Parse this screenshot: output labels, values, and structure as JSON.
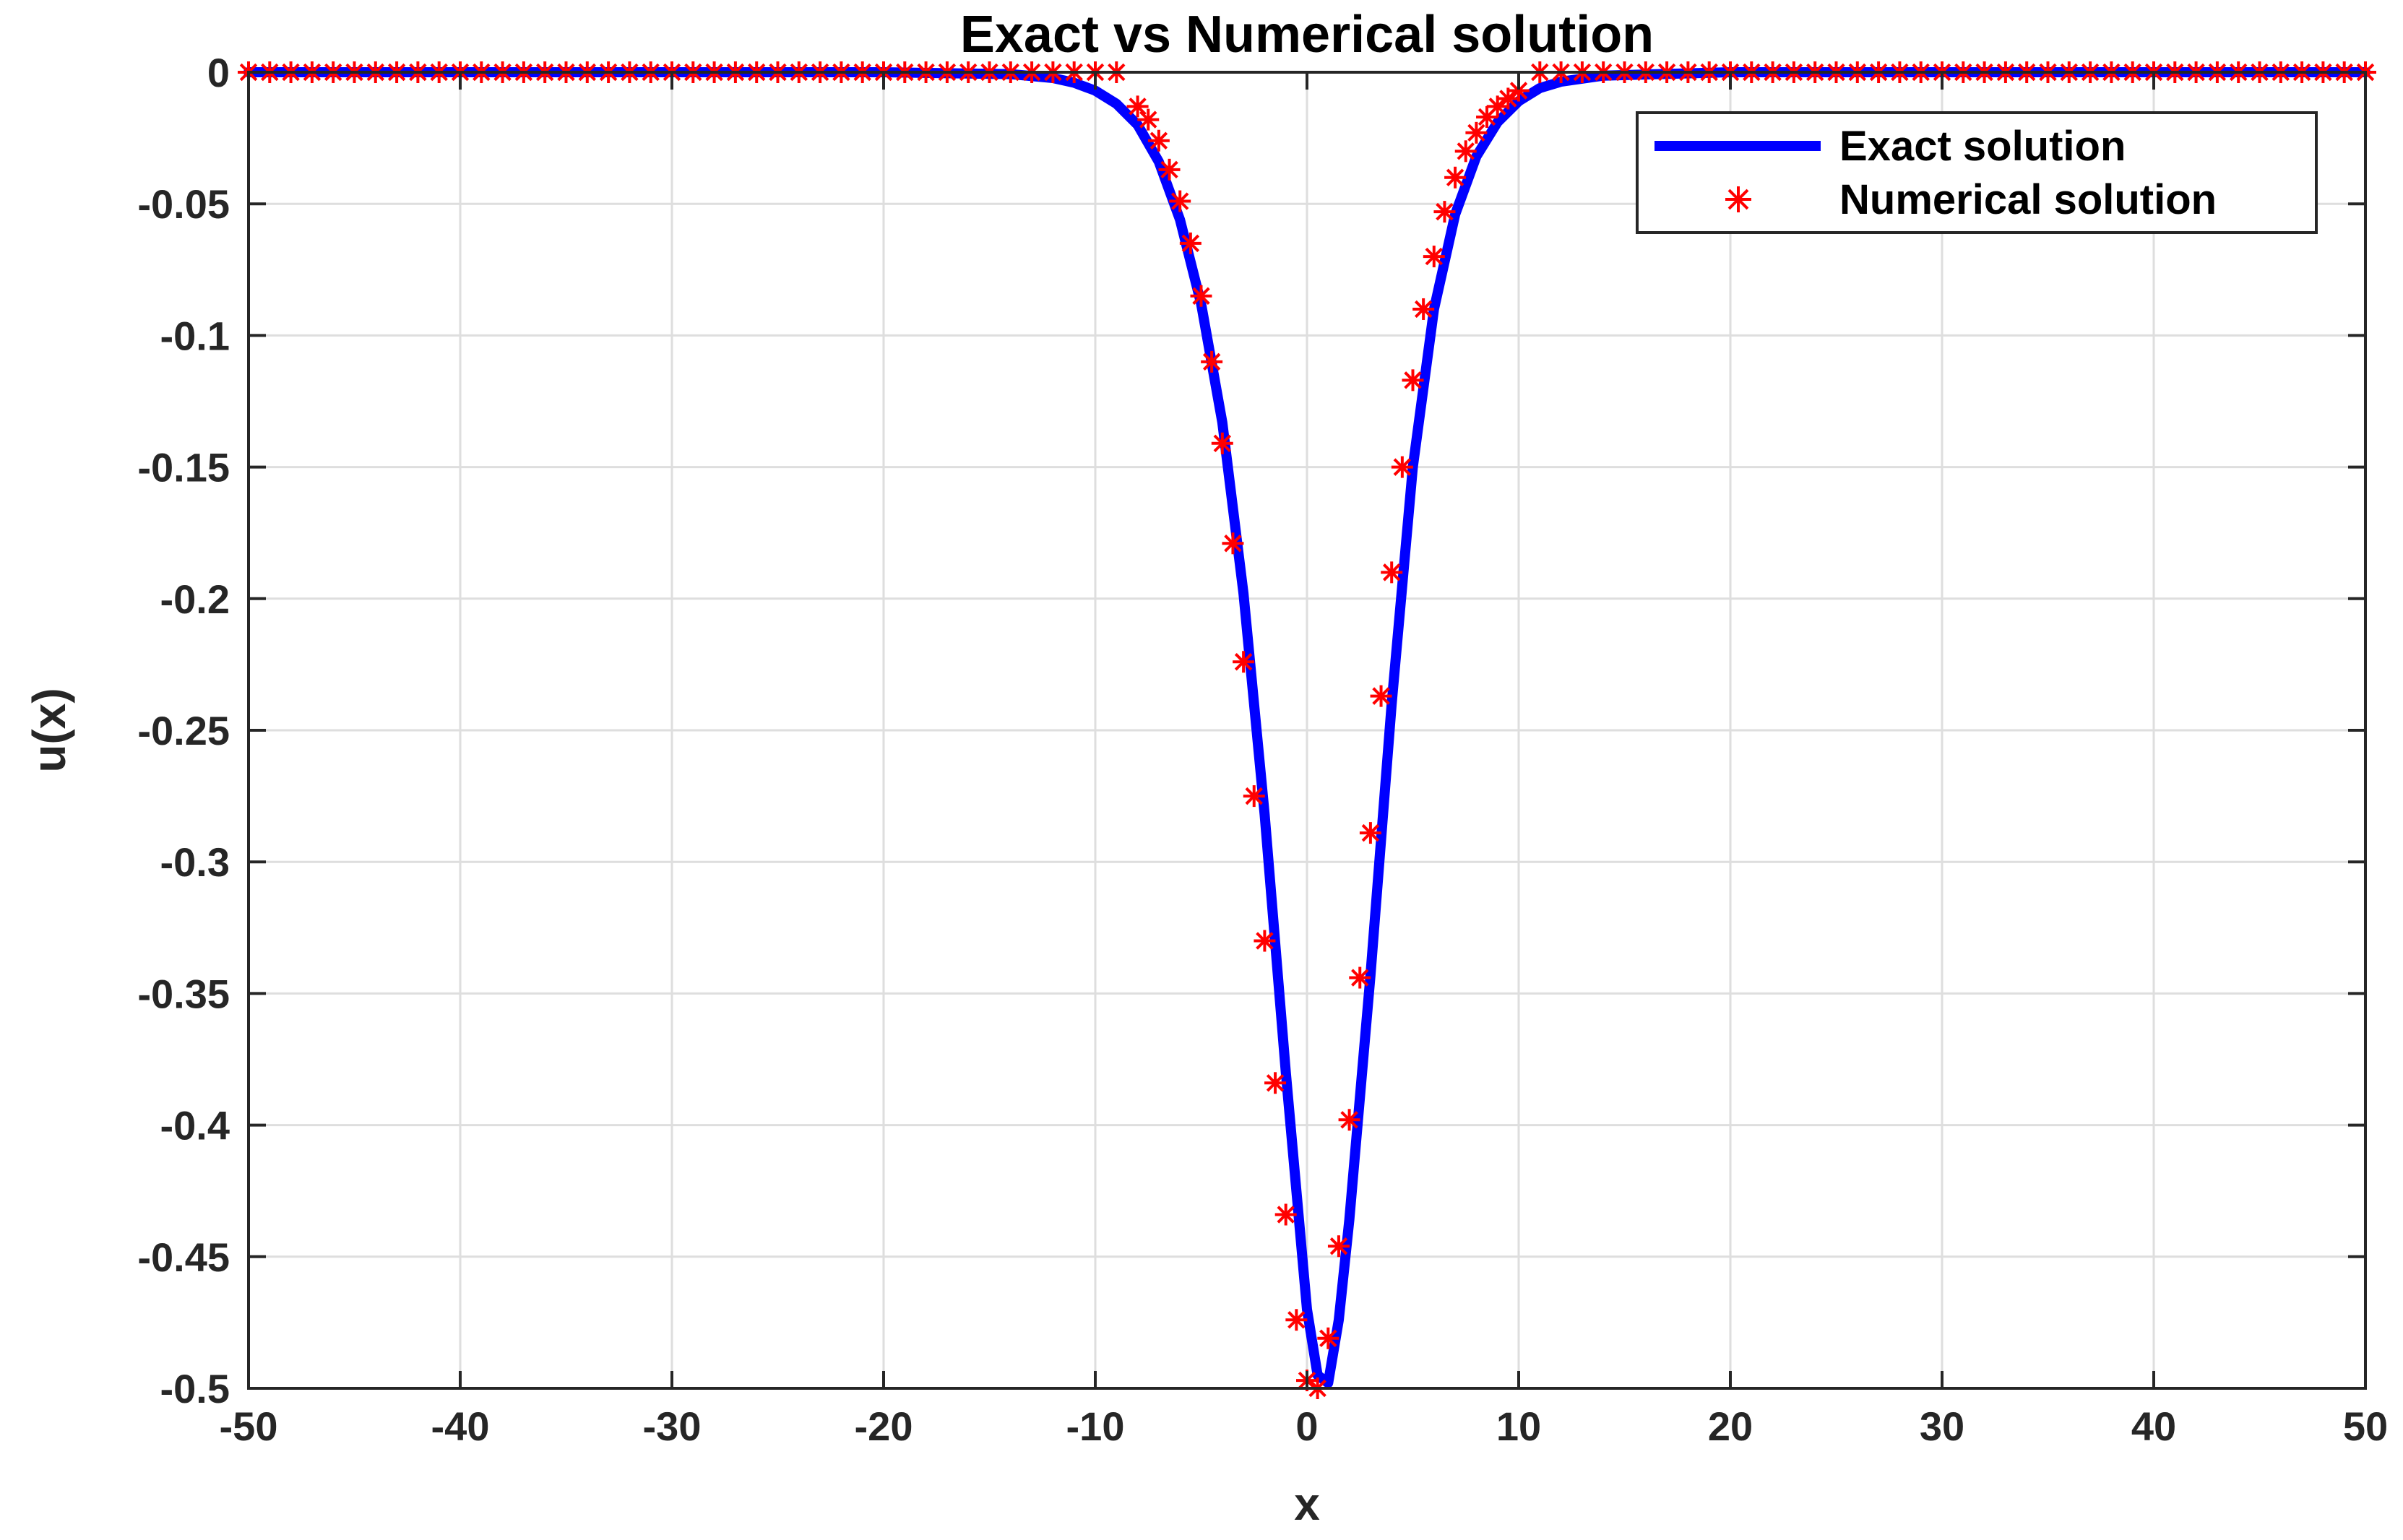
{
  "chart_data": {
    "type": "line",
    "title": "Exact vs Numerical solution",
    "xlabel": "x",
    "ylabel": "u(x)",
    "xlim": [
      -50,
      50
    ],
    "ylim": [
      -0.5,
      0
    ],
    "xticks": [
      -50,
      -40,
      -30,
      -20,
      -10,
      0,
      10,
      20,
      30,
      40,
      50
    ],
    "yticks": [
      0,
      -0.05,
      -0.1,
      -0.15,
      -0.2,
      -0.25,
      -0.3,
      -0.35,
      -0.4,
      -0.45,
      -0.5
    ],
    "xtick_labels": [
      "-50",
      "-40",
      "-30",
      "-20",
      "-10",
      "0",
      "10",
      "20",
      "30",
      "40",
      "50"
    ],
    "ytick_labels": [
      "0",
      "-0.05",
      "-0.1",
      "-0.15",
      "-0.2",
      "-0.25",
      "-0.3",
      "-0.35",
      "-0.4",
      "-0.45",
      "-0.5"
    ],
    "grid": true,
    "legend_position": "top-right",
    "series": [
      {
        "name": "Exact solution",
        "style": "line",
        "color": "#0000ff",
        "x": [
          -50,
          -20,
          -14,
          -12,
          -11,
          -10,
          -9,
          -8,
          -7,
          -6,
          -5,
          -4,
          -3,
          -2,
          -1,
          0,
          0.5,
          1,
          1.5,
          2,
          3,
          4,
          5,
          6,
          7,
          8,
          9,
          10,
          11,
          12,
          14,
          20,
          50
        ],
        "y": [
          0,
          0,
          -0.0007,
          -0.0022,
          -0.004,
          -0.007,
          -0.012,
          -0.02,
          -0.034,
          -0.056,
          -0.088,
          -0.133,
          -0.198,
          -0.282,
          -0.38,
          -0.47,
          -0.495,
          -0.498,
          -0.474,
          -0.436,
          -0.343,
          -0.24,
          -0.15,
          -0.09,
          -0.054,
          -0.032,
          -0.019,
          -0.011,
          -0.006,
          -0.0036,
          -0.0013,
          0,
          0
        ]
      },
      {
        "name": "Numerical solution",
        "style": "marker",
        "marker": "asterisk",
        "color": "#ff0000",
        "x": [
          -8,
          -7.5,
          -7,
          -6.5,
          -6,
          -5.5,
          -5,
          -4.5,
          -4,
          -3.5,
          -3,
          -2.5,
          -2,
          -1.5,
          -1,
          -0.5,
          0,
          0.5,
          1,
          1.5,
          2,
          2.5,
          3,
          3.5,
          4,
          4.5,
          5,
          5.5,
          6,
          6.5,
          7,
          7.5,
          8,
          8.5,
          9,
          9.5,
          10
        ],
        "y": [
          -0.013,
          -0.018,
          -0.026,
          -0.037,
          -0.049,
          -0.065,
          -0.085,
          -0.11,
          -0.141,
          -0.179,
          -0.224,
          -0.275,
          -0.33,
          -0.384,
          -0.434,
          -0.474,
          -0.497,
          -0.5,
          -0.481,
          -0.446,
          -0.398,
          -0.344,
          -0.289,
          -0.237,
          -0.19,
          -0.15,
          -0.117,
          -0.09,
          -0.07,
          -0.053,
          -0.04,
          -0.03,
          -0.023,
          -0.017,
          -0.013,
          -0.01,
          -0.007
        ]
      }
    ]
  }
}
